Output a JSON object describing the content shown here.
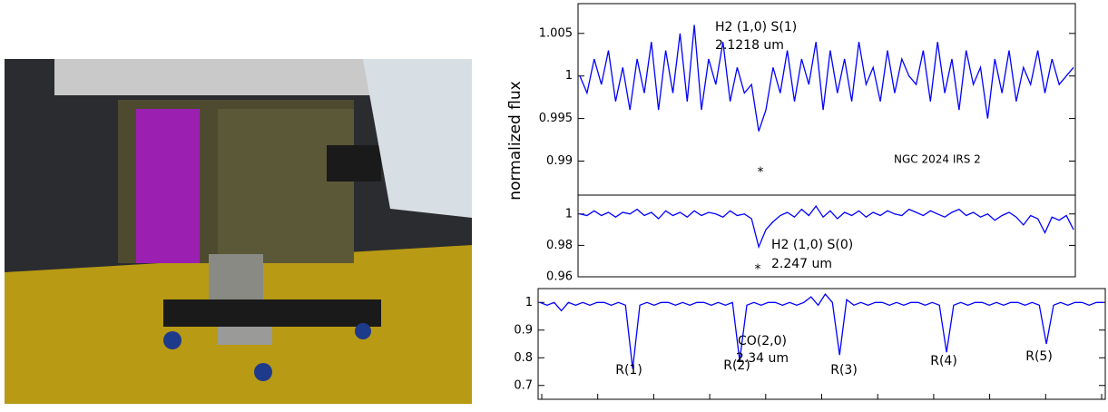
{
  "chart_data": [
    {
      "type": "line",
      "ylabel": "normalized flux",
      "color": "#0000ff",
      "ylim": [
        0.986,
        1.0085
      ],
      "yticks": [
        0.99,
        0.995,
        1,
        1.005
      ],
      "annotations": [
        "H2 (1,0) S(1)",
        "2.1218 um",
        "NGC 2024 IRS 2",
        "*"
      ],
      "values": [
        1.0,
        0.998,
        1.002,
        0.999,
        1.003,
        0.997,
        1.001,
        0.996,
        1.002,
        0.998,
        1.004,
        0.996,
        1.003,
        0.998,
        1.005,
        0.997,
        1.006,
        0.996,
        1.002,
        0.999,
        1.004,
        0.997,
        1.001,
        0.998,
        0.999,
        0.9935,
        0.996,
        1.001,
        0.998,
        1.003,
        0.997,
        1.002,
        0.999,
        1.004,
        0.996,
        1.003,
        0.998,
        1.002,
        0.997,
        1.004,
        0.999,
        1.001,
        0.997,
        1.003,
        0.998,
        1.002,
        1.0,
        0.999,
        1.003,
        0.997,
        1.004,
        0.998,
        1.002,
        0.996,
        1.003,
        0.999,
        1.001,
        0.995,
        1.002,
        0.998,
        1.003,
        0.997,
        1.001,
        0.999,
        1.003,
        0.998,
        1.002,
        0.999,
        1.0,
        1.001
      ]
    },
    {
      "type": "line",
      "color": "#0000ff",
      "ylim": [
        0.96,
        1.012
      ],
      "yticks": [
        0.96,
        0.98,
        1
      ],
      "annotations": [
        "H2 (1,0) S(0)",
        "2.247 um",
        "*"
      ],
      "values": [
        1.0,
        0.999,
        1.002,
        0.999,
        1.001,
        0.998,
        1.001,
        1.0,
        1.003,
        0.999,
        1.001,
        0.997,
        1.002,
        0.999,
        1.001,
        0.998,
        1.002,
        0.999,
        1.001,
        1.0,
        0.998,
        1.002,
        0.999,
        1.0,
        0.997,
        0.979,
        0.99,
        0.995,
        0.999,
        1.001,
        0.998,
        1.003,
        0.999,
        1.005,
        0.998,
        1.002,
        0.997,
        1.001,
        0.999,
        1.002,
        0.998,
        1.001,
        0.999,
        1.002,
        1.0,
        0.999,
        1.003,
        1.001,
        0.999,
        1.002,
        1.0,
        0.998,
        1.001,
        1.003,
        0.999,
        1.001,
        0.998,
        1.0,
        0.996,
        0.999,
        1.001,
        0.998,
        0.993,
        0.999,
        0.997,
        0.988,
        0.998,
        0.996,
        0.999,
        0.99
      ]
    },
    {
      "type": "line",
      "color": "#0000ff",
      "ylim": [
        0.65,
        1.05
      ],
      "yticks": [
        0.7,
        0.8,
        0.9,
        1
      ],
      "annotations": [
        "CO(2,0)",
        "2.34 um",
        "R(1)",
        "R(2)",
        "R(3)",
        "R(4)",
        "R(5)"
      ],
      "values": [
        1.0,
        0.99,
        1.0,
        0.97,
        1.0,
        0.99,
        1.0,
        0.99,
        1.0,
        1.0,
        0.99,
        1.0,
        0.99,
        0.76,
        0.99,
        1.0,
        0.99,
        1.0,
        1.0,
        0.99,
        1.0,
        0.99,
        1.0,
        1.0,
        0.99,
        1.0,
        0.99,
        1.0,
        0.79,
        0.99,
        1.0,
        0.99,
        1.0,
        1.0,
        0.99,
        1.0,
        0.99,
        1.0,
        1.02,
        0.99,
        1.03,
        1.0,
        0.81,
        1.01,
        0.99,
        1.0,
        0.99,
        1.0,
        1.0,
        0.99,
        1.0,
        0.99,
        1.0,
        1.0,
        0.99,
        1.0,
        0.99,
        0.82,
        0.99,
        1.0,
        0.99,
        1.0,
        1.0,
        0.99,
        1.0,
        0.99,
        1.0,
        1.0,
        0.99,
        1.0,
        0.99,
        0.85,
        0.99,
        1.0,
        0.99,
        1.0,
        1.0,
        0.99,
        1.0,
        1.0
      ]
    }
  ]
}
